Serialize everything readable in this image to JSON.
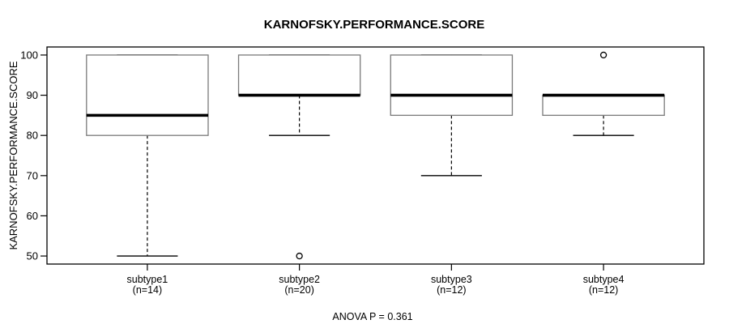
{
  "page": {
    "background": "#ffffff"
  },
  "chart_data": {
    "type": "boxplot",
    "title": "KARNOFSKY.PERFORMANCE.SCORE",
    "ylabel": "KARNOFSKY.PERFORMANCE.SCORE",
    "xlabel": "",
    "annotation": "ANOVA P = 0.361",
    "ylim": [
      50,
      100
    ],
    "yticks": [
      50,
      60,
      70,
      80,
      90,
      100
    ],
    "grid": false,
    "legend": false,
    "categories": [
      "subtype1",
      "subtype2",
      "subtype3",
      "subtype4"
    ],
    "category_sublabels": [
      "(n=14)",
      "(n=20)",
      "(n=12)",
      "(n=12)"
    ],
    "sample_sizes": [
      14,
      20,
      12,
      12
    ],
    "series": [
      {
        "name": "subtype1",
        "whisker_low": 50,
        "q1": 80,
        "median": 85,
        "q3": 100,
        "whisker_high": 100,
        "outliers": []
      },
      {
        "name": "subtype2",
        "whisker_low": 80,
        "q1": 90,
        "median": 90,
        "q3": 100,
        "whisker_high": 100,
        "outliers": [
          50
        ]
      },
      {
        "name": "subtype3",
        "whisker_low": 70,
        "q1": 85,
        "median": 90,
        "q3": 100,
        "whisker_high": 100,
        "outliers": []
      },
      {
        "name": "subtype4",
        "whisker_low": 80,
        "q1": 85,
        "median": 90,
        "q3": 90,
        "whisker_high": 90,
        "outliers": [
          100
        ]
      }
    ],
    "colors": {
      "line": "#000000",
      "box_border": "#7a7a7a",
      "background": "#ffffff"
    }
  }
}
